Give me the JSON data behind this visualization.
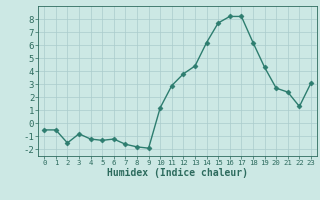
{
  "x": [
    0,
    1,
    2,
    3,
    4,
    5,
    6,
    7,
    8,
    9,
    10,
    11,
    12,
    13,
    14,
    15,
    16,
    17,
    18,
    19,
    20,
    21,
    22,
    23
  ],
  "y": [
    -0.5,
    -0.5,
    -1.5,
    -0.8,
    -1.2,
    -1.3,
    -1.2,
    -1.6,
    -1.8,
    -1.9,
    1.2,
    2.9,
    3.8,
    4.4,
    6.2,
    7.7,
    8.2,
    8.2,
    6.2,
    4.3,
    2.7,
    2.4,
    1.3,
    3.1
  ],
  "line_color": "#2d7d6f",
  "marker": "D",
  "marker_size": 2.5,
  "line_width": 1.0,
  "bg_color": "#cce8e4",
  "grid_color": "#aacccc",
  "xlabel": "Humidex (Indice chaleur)",
  "xlim": [
    -0.5,
    23.5
  ],
  "ylim": [
    -2.5,
    9.0
  ],
  "yticks": [
    -2,
    -1,
    0,
    1,
    2,
    3,
    4,
    5,
    6,
    7,
    8
  ],
  "xticks": [
    0,
    1,
    2,
    3,
    4,
    5,
    6,
    7,
    8,
    9,
    10,
    11,
    12,
    13,
    14,
    15,
    16,
    17,
    18,
    19,
    20,
    21,
    22,
    23
  ],
  "tick_color": "#2d6b5e",
  "ylabel_fontsize": 6,
  "xlabel_fontsize": 7,
  "xtick_fontsize": 5.2,
  "ytick_fontsize": 6.5
}
